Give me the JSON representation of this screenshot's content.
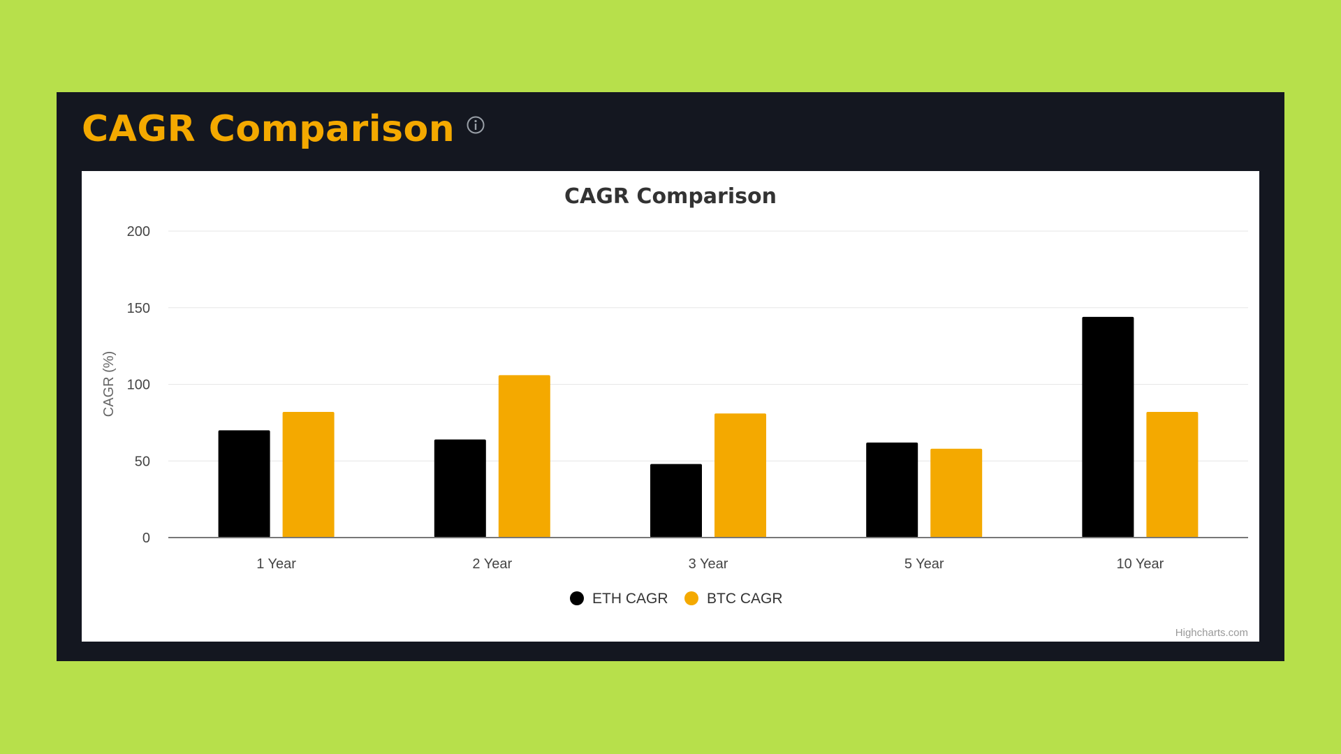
{
  "header": {
    "title": "CAGR Comparison",
    "info_icon": "info-icon"
  },
  "colors": {
    "background": "#b7e04b",
    "panel": "#141720",
    "accent": "#f4a900",
    "eth": "#000000",
    "btc": "#f4a900"
  },
  "chart_data": {
    "type": "bar",
    "title": "CAGR Comparison",
    "xlabel": "",
    "ylabel": "CAGR (%)",
    "ylim": [
      0,
      200
    ],
    "yticks": [
      0,
      50,
      100,
      150,
      200
    ],
    "categories": [
      "1 Year",
      "2 Year",
      "3 Year",
      "5 Year",
      "10 Year"
    ],
    "series": [
      {
        "name": "ETH CAGR",
        "color": "#000000",
        "values": [
          70,
          64,
          48,
          62,
          144
        ]
      },
      {
        "name": "BTC CAGR",
        "color": "#f4a900",
        "values": [
          82,
          106,
          81,
          58,
          82
        ]
      }
    ],
    "grid": true,
    "legend_position": "bottom-center",
    "credits": "Highcharts.com"
  }
}
